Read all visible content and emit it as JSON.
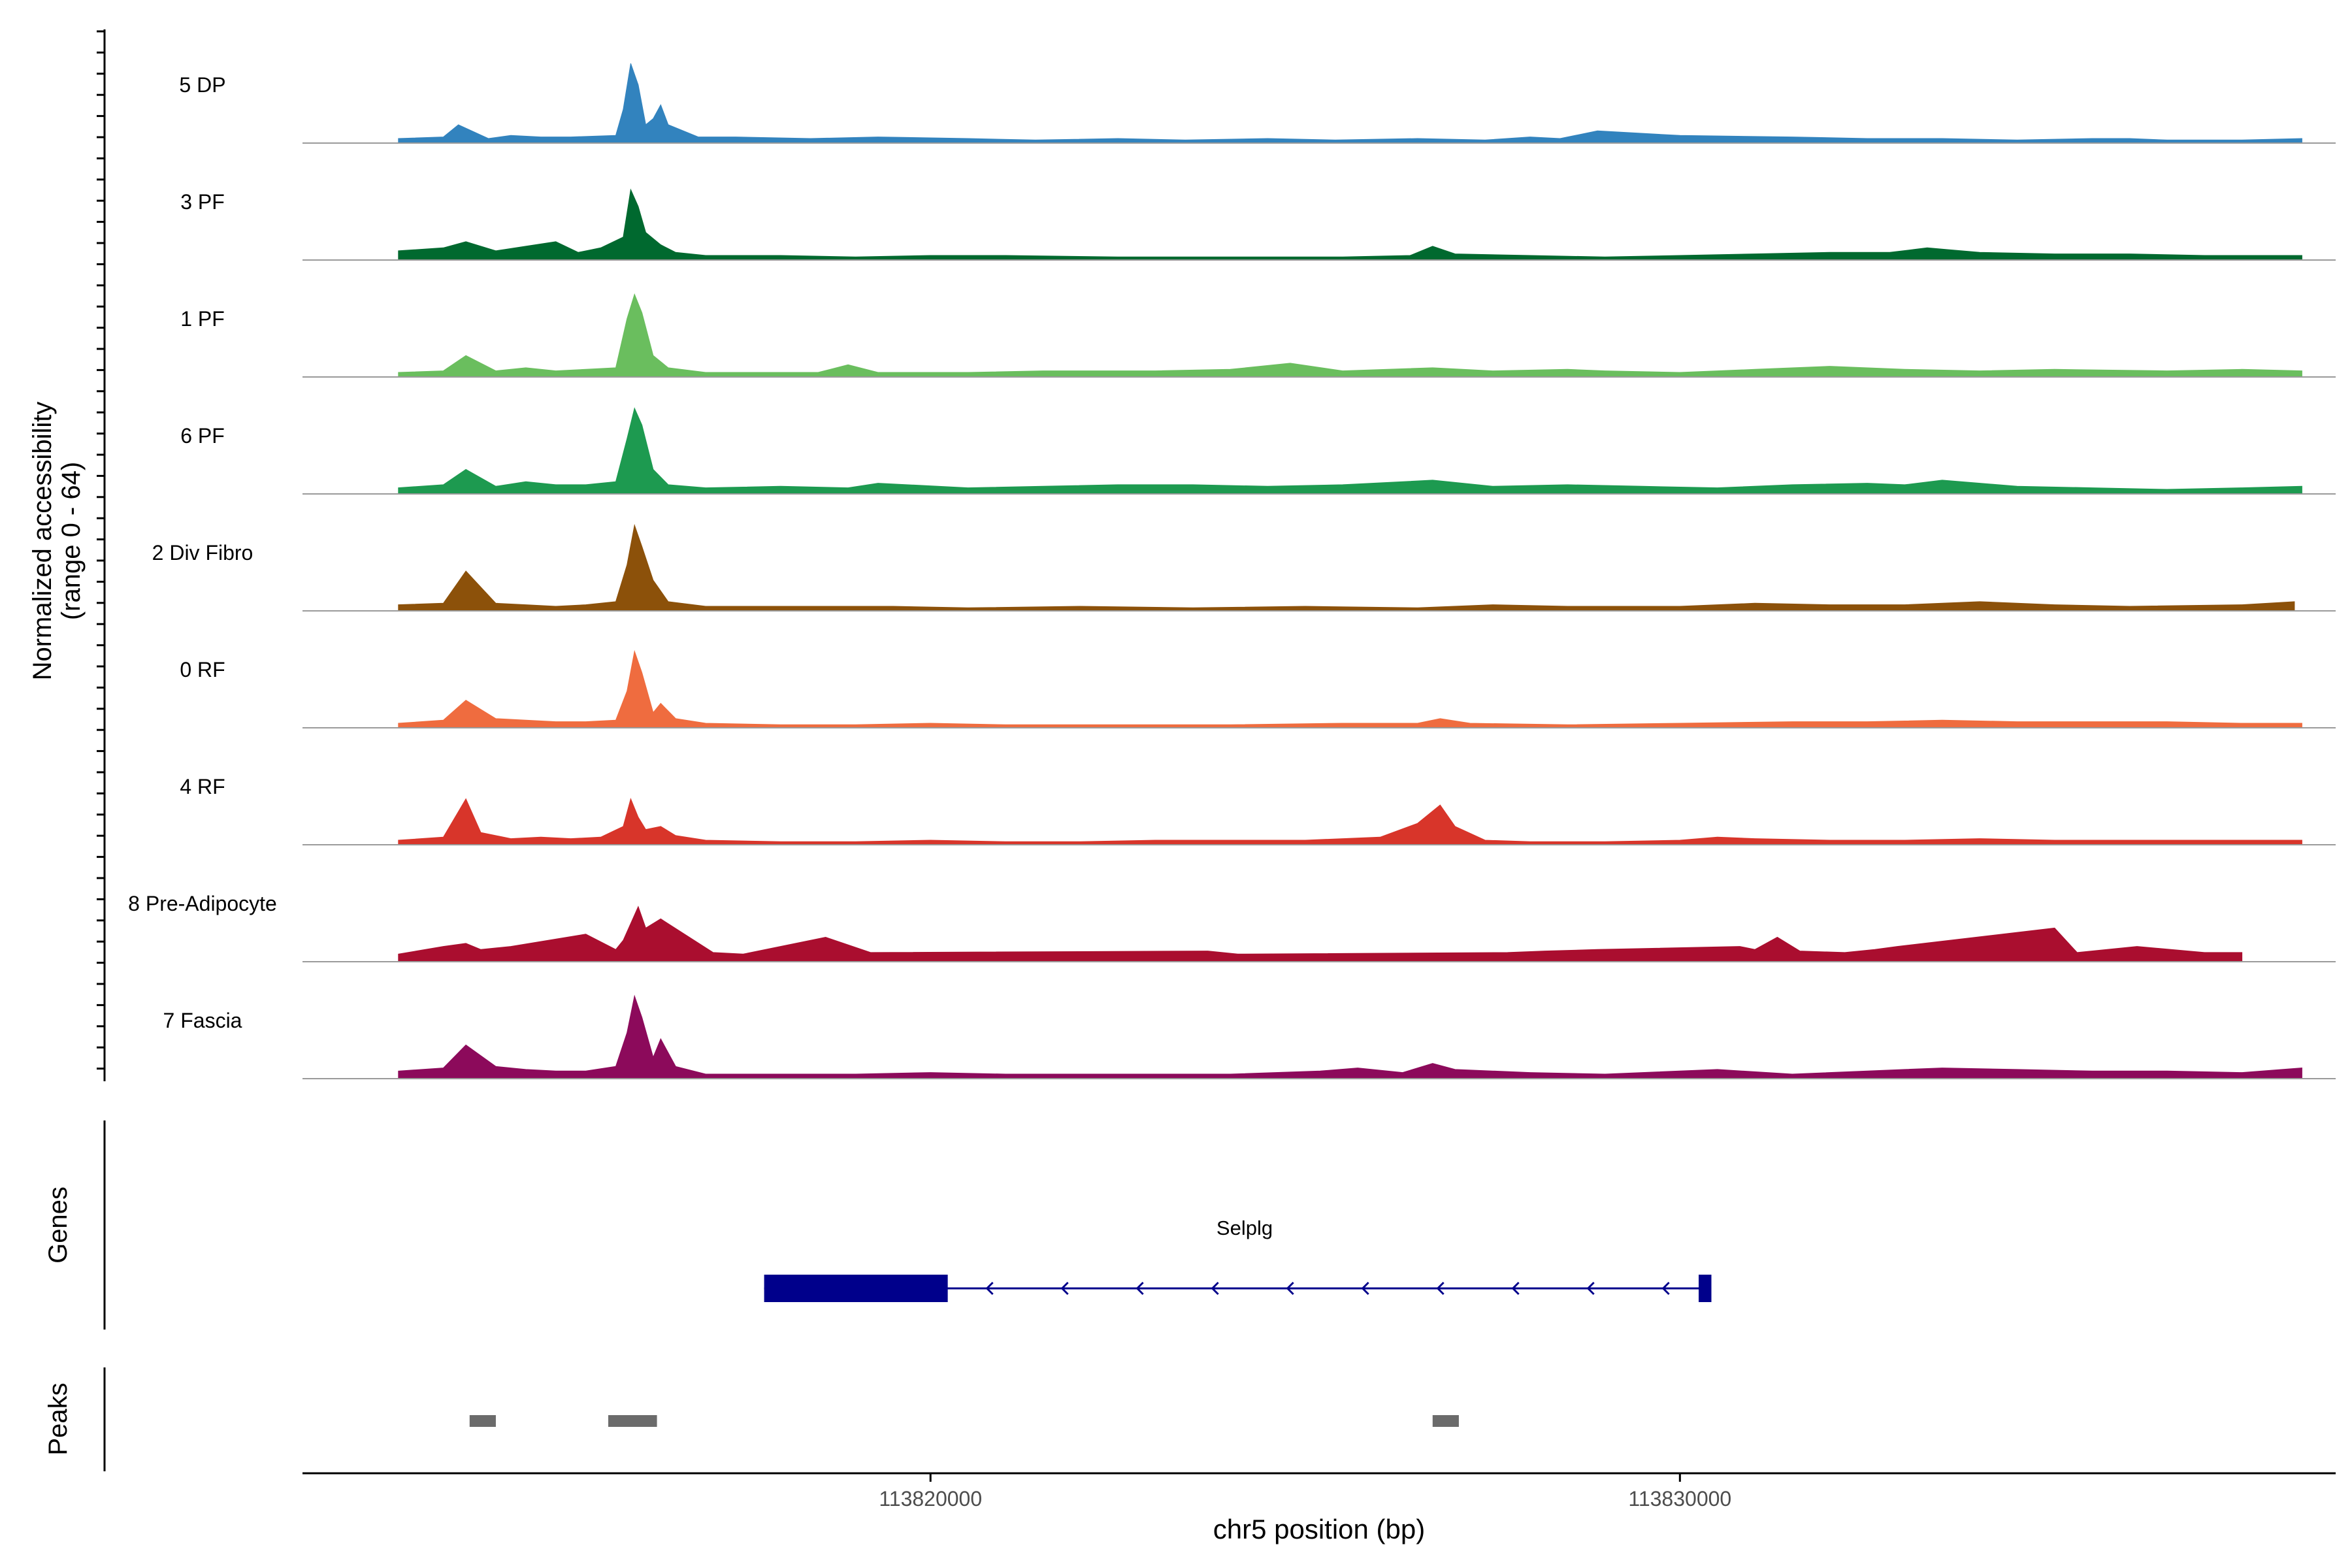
{
  "chart_data": {
    "type": "area",
    "title": "",
    "ylabel_line1": "Normalized accessibility",
    "ylabel_line2": "(range 0 - 64)",
    "xlabel": "chr5 position (bp)",
    "region": {
      "chrom": "chr5",
      "start": 113811620,
      "end": 113838750
    },
    "xlim": [
      113811620,
      113838750
    ],
    "ylim": [
      0,
      64
    ],
    "x_ticks": [
      113820000,
      113830000
    ],
    "x_tick_labels": [
      "113820000",
      "113830000"
    ],
    "series": [
      {
        "name": "5 DP",
        "color": "#3283be",
        "x": [
          113812900,
          113813500,
          113813700,
          113814100,
          113814400,
          113814800,
          113815200,
          113815800,
          113815900,
          113816000,
          113816100,
          113816200,
          113816300,
          113816400,
          113816500,
          113816900,
          113817400,
          113818400,
          113819300,
          113820500,
          113821400,
          113822500,
          113823400,
          113824500,
          113825400,
          113826500,
          113827400,
          113828000,
          113828400,
          113828900,
          113830000,
          113831500,
          113832500,
          113833500,
          113834500,
          113835500,
          113836000,
          113836500,
          113837500,
          113838300
        ],
        "values": [
          3,
          4,
          12,
          3,
          5,
          4,
          4,
          5,
          22,
          52,
          38,
          12,
          16,
          25,
          12,
          4,
          4,
          3,
          4,
          3,
          2,
          3,
          2,
          3,
          2,
          3,
          2,
          4,
          3,
          8,
          5,
          4,
          3,
          3,
          2,
          3,
          3,
          2,
          2,
          3
        ]
      },
      {
        "name": "3 PF",
        "color": "#00692f",
        "x": [
          113812900,
          113813500,
          113813800,
          113814200,
          113814600,
          113815000,
          113815300,
          113815600,
          113815900,
          113816000,
          113816100,
          113816200,
          113816400,
          113816600,
          113817000,
          113818000,
          113819000,
          113820000,
          113821000,
          113822500,
          113823500,
          113824500,
          113825500,
          113826400,
          113826700,
          113827000,
          113828000,
          113829000,
          113830000,
          113831000,
          113832000,
          113832800,
          113833300,
          113834000,
          113835000,
          113836000,
          113837000,
          113838300
        ],
        "values": [
          6,
          8,
          12,
          6,
          9,
          12,
          5,
          8,
          15,
          46,
          35,
          18,
          10,
          5,
          3,
          3,
          2,
          3,
          3,
          2,
          2,
          2,
          2,
          3,
          9,
          4,
          3,
          2,
          3,
          4,
          5,
          5,
          8,
          5,
          4,
          4,
          3,
          3
        ]
      },
      {
        "name": "1 PF",
        "color": "#6abe5e",
        "x": [
          113812900,
          113813500,
          113813800,
          113814200,
          113814600,
          113815000,
          113815400,
          113815800,
          113815950,
          113816050,
          113816150,
          113816300,
          113816500,
          113817000,
          113818500,
          113818900,
          113819300,
          113820500,
          113821500,
          113823000,
          113824000,
          113824800,
          113825500,
          113826700,
          113827500,
          113828500,
          113829000,
          113830000,
          113831000,
          113832000,
          113833000,
          113834000,
          113835000,
          113836500,
          113837500,
          113838300
        ],
        "values": [
          3,
          4,
          14,
          4,
          6,
          4,
          5,
          6,
          38,
          54,
          42,
          14,
          6,
          3,
          3,
          8,
          3,
          3,
          4,
          4,
          5,
          9,
          4,
          6,
          4,
          5,
          4,
          3,
          5,
          7,
          5,
          4,
          5,
          4,
          5,
          4
        ]
      },
      {
        "name": "6 PF",
        "color": "#1d9a50",
        "x": [
          113812900,
          113813500,
          113813800,
          113814200,
          113814600,
          113815000,
          113815400,
          113815800,
          113815950,
          113816050,
          113816150,
          113816300,
          113816500,
          113817000,
          113818000,
          113818900,
          113819300,
          113820500,
          113821500,
          113822500,
          113823500,
          113824500,
          113825500,
          113826700,
          113827500,
          113828500,
          113829500,
          113830500,
          113831500,
          113832500,
          113833000,
          113833500,
          113834500,
          113835500,
          113836500,
          113837500,
          113838300
        ],
        "values": [
          4,
          6,
          16,
          5,
          8,
          6,
          6,
          8,
          36,
          56,
          45,
          16,
          6,
          4,
          5,
          4,
          7,
          4,
          5,
          6,
          6,
          5,
          6,
          9,
          5,
          6,
          5,
          4,
          6,
          7,
          6,
          9,
          5,
          4,
          3,
          4,
          5
        ]
      },
      {
        "name": "2 Div Fibro",
        "color": "#8c510a",
        "x": [
          113812900,
          113813500,
          113813800,
          113814200,
          113814600,
          113815000,
          113815400,
          113815800,
          113815950,
          113816050,
          113816150,
          113816300,
          113816500,
          113817000,
          113818500,
          113819500,
          113820500,
          113822000,
          113823500,
          113825000,
          113826500,
          113827500,
          113828500,
          113830000,
          113831000,
          113832000,
          113833000,
          113834000,
          113835000,
          113836000,
          113837500,
          113838200
        ],
        "values": [
          4,
          5,
          26,
          5,
          4,
          3,
          4,
          6,
          30,
          56,
          42,
          20,
          6,
          3,
          3,
          3,
          2,
          3,
          2,
          3,
          2,
          4,
          3,
          3,
          5,
          4,
          4,
          6,
          4,
          3,
          4,
          6
        ]
      },
      {
        "name": "0 RF",
        "color": "#ef6c3f",
        "x": [
          113812900,
          113813500,
          113813800,
          113814200,
          113814600,
          113815000,
          113815400,
          113815800,
          113815950,
          113816050,
          113816150,
          113816300,
          113816400,
          113816600,
          113817000,
          113818000,
          113819000,
          113820000,
          113821000,
          113822500,
          113824000,
          113825500,
          113826500,
          113826800,
          113827200,
          113828500,
          113830000,
          113831500,
          113832500,
          113833500,
          113834500,
          113835500,
          113836500,
          113837500,
          113838300
        ],
        "values": [
          3,
          5,
          18,
          6,
          5,
          4,
          4,
          5,
          24,
          50,
          36,
          10,
          16,
          6,
          3,
          2,
          2,
          3,
          2,
          2,
          2,
          3,
          3,
          6,
          3,
          2,
          3,
          4,
          4,
          5,
          4,
          4,
          4,
          3,
          3
        ]
      },
      {
        "name": "4 RF",
        "color": "#d8352a",
        "x": [
          113812900,
          113813500,
          113813800,
          113814000,
          113814400,
          113814800,
          113815200,
          113815600,
          113815900,
          113816000,
          113816100,
          113816200,
          113816400,
          113816600,
          113817000,
          113818000,
          113819000,
          113820000,
          113821000,
          113822000,
          113823000,
          113824000,
          113825000,
          113826000,
          113826500,
          113826800,
          113827000,
          113827400,
          113828000,
          113829000,
          113830000,
          113830500,
          113831000,
          113832000,
          113833000,
          113834000,
          113835000,
          113836000,
          113837000,
          113838300
        ],
        "values": [
          3,
          5,
          30,
          8,
          4,
          5,
          4,
          5,
          12,
          30,
          18,
          10,
          12,
          6,
          3,
          2,
          2,
          3,
          2,
          2,
          3,
          3,
          3,
          5,
          14,
          26,
          12,
          3,
          2,
          2,
          3,
          5,
          4,
          3,
          3,
          4,
          3,
          3,
          3,
          3
        ]
      },
      {
        "name": "8 Pre-Adipocyte",
        "color": "#aa0e2f",
        "x": [
          113812900,
          113813500,
          113813800,
          113814000,
          113814400,
          113815400,
          113815800,
          113815900,
          113816000,
          113816100,
          113816200,
          113816400,
          113817100,
          113817500,
          113818600,
          113819200,
          113823700,
          113824100,
          113827700,
          113828200,
          113828900,
          113830800,
          113831000,
          113831300,
          113831600,
          113832200,
          113832600,
          113832900,
          113835000,
          113835300,
          113835700,
          113836100,
          113837000,
          113837500
        ],
        "values": [
          5,
          10,
          12,
          8,
          10,
          18,
          8,
          14,
          25,
          36,
          22,
          28,
          6,
          5,
          16,
          6,
          7,
          5,
          6,
          7,
          8,
          10,
          8,
          16,
          7,
          6,
          8,
          10,
          22,
          6,
          8,
          10,
          6,
          6
        ]
      },
      {
        "name": "7 Fascia",
        "color": "#8c0a5b",
        "x": [
          113812900,
          113813500,
          113813800,
          113814200,
          113814600,
          113815000,
          113815400,
          113815800,
          113815950,
          113816050,
          113816150,
          113816300,
          113816400,
          113816600,
          113817000,
          113818000,
          113819000,
          113820000,
          113821000,
          113822500,
          113824000,
          113825200,
          113825700,
          113826300,
          113826700,
          113827000,
          113828000,
          113829000,
          113830500,
          113831500,
          113832500,
          113833000,
          113833500,
          113834500,
          113835500,
          113836500,
          113837500,
          113838300
        ],
        "values": [
          5,
          7,
          22,
          8,
          6,
          5,
          5,
          8,
          30,
          54,
          40,
          14,
          26,
          8,
          3,
          3,
          3,
          4,
          3,
          3,
          3,
          5,
          7,
          4,
          10,
          6,
          4,
          3,
          6,
          3,
          5,
          6,
          7,
          6,
          5,
          5,
          4,
          7
        ]
      }
    ],
    "genes_track": {
      "label": "Genes",
      "gene_name": "Selplg",
      "strand": "-",
      "gene_start": 113817780,
      "gene_end": 113830420,
      "exons": [
        [
          113817780,
          113820230
        ],
        [
          113830250,
          113830420
        ]
      ]
    },
    "peaks_track": {
      "label": "Peaks",
      "peaks": [
        [
          113813850,
          113814200
        ],
        [
          113815700,
          113816350
        ],
        [
          113826700,
          113827050
        ]
      ]
    }
  }
}
